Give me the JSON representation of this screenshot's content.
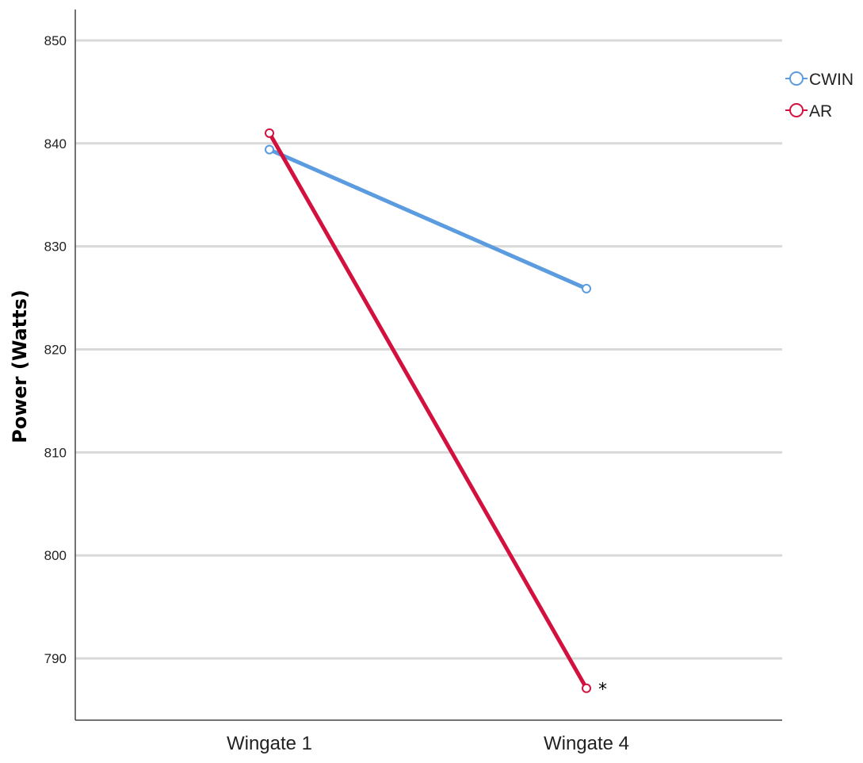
{
  "chart_data": {
    "type": "line",
    "title": "",
    "xlabel": "",
    "ylabel": "Power (Watts)",
    "categories": [
      "Wingate 1",
      "Wingate 4"
    ],
    "ylim": [
      784,
      853
    ],
    "yticks": [
      790,
      800,
      810,
      820,
      830,
      840,
      850
    ],
    "grid": true,
    "legend_position": "top-right",
    "series": [
      {
        "name": "CWIN",
        "color": "#5b9bdf",
        "values": [
          839.4,
          825.9
        ]
      },
      {
        "name": "AR",
        "color": "#d2113e",
        "values": [
          841.0,
          787.1
        ]
      }
    ],
    "annotations": [
      {
        "text": "*",
        "category": "Wingate 4",
        "series": "AR"
      }
    ]
  }
}
